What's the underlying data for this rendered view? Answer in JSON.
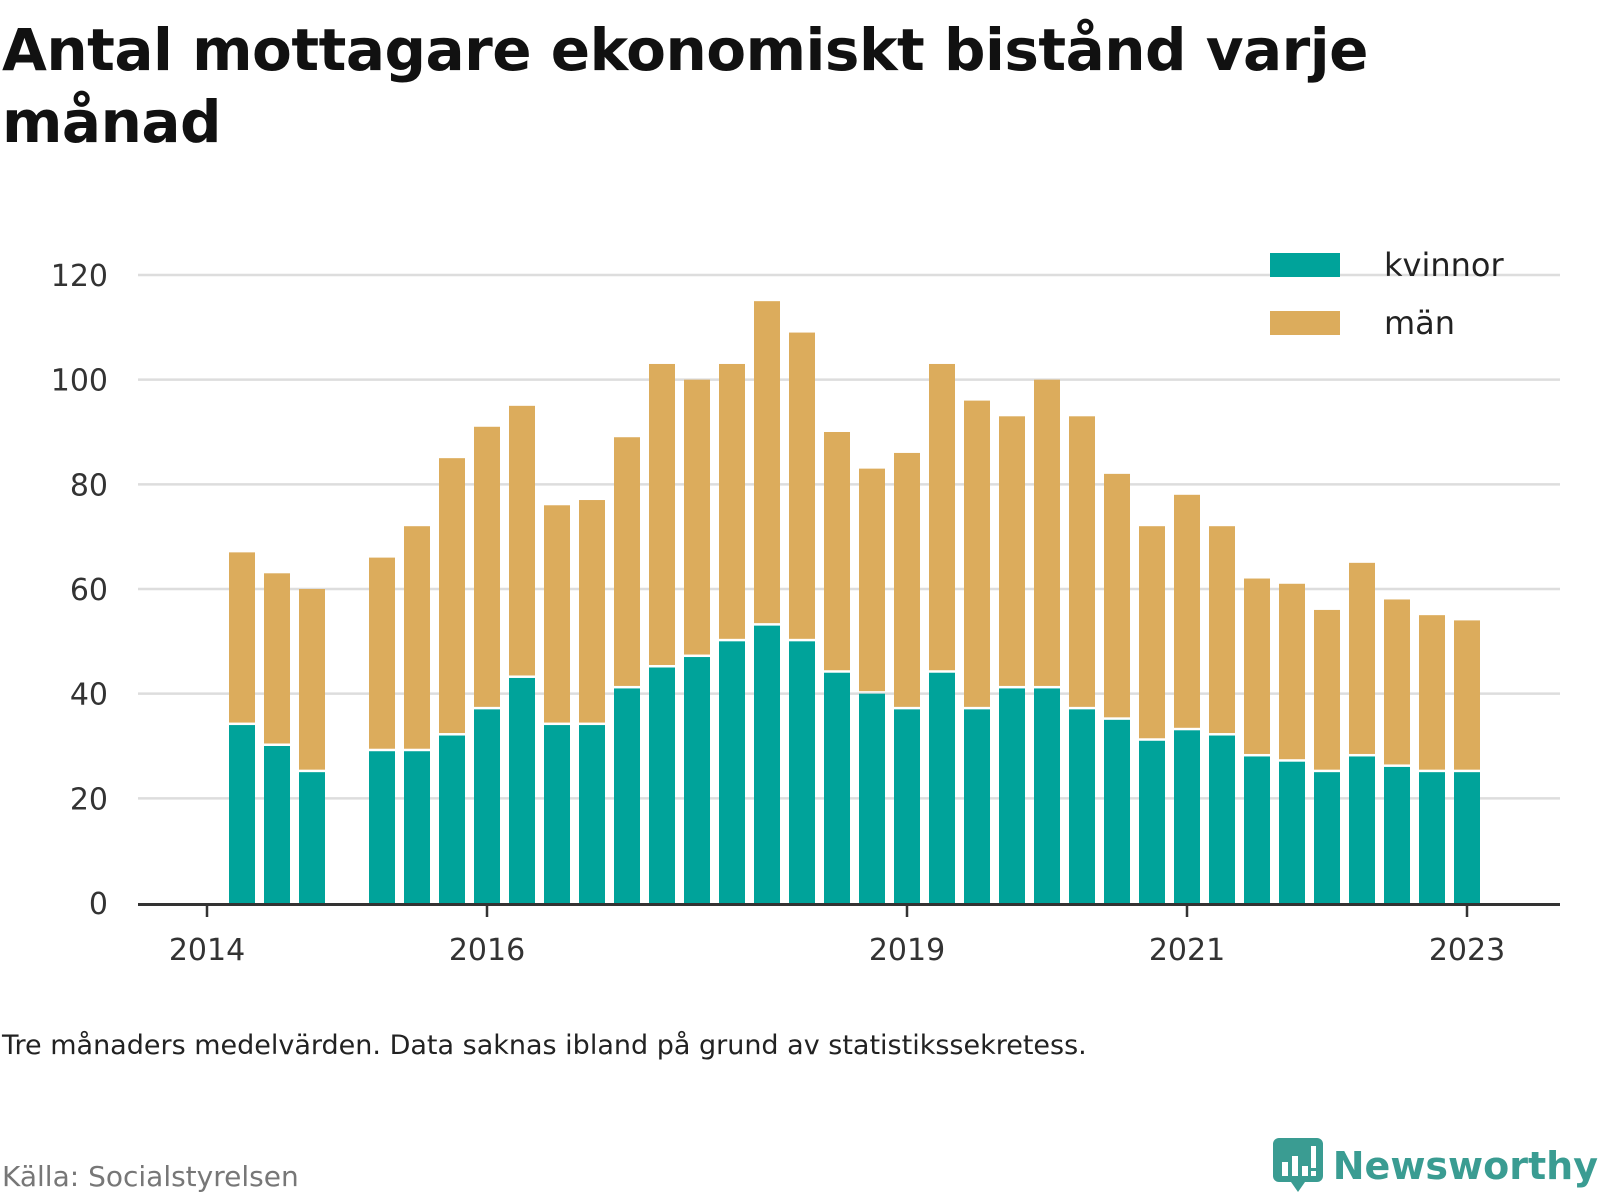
{
  "title": "Antal mottagare ekonomiskt bistånd varje månad",
  "note": "Tre månaders medelvärden. Data saknas ibland på grund av statistikssekretess.",
  "source": "Källa: Socialstyrelsen",
  "brand": "Newsworthy",
  "colors": {
    "kvinnor": "#00a39a",
    "man": "#dcac5c",
    "grid": "#dddddd",
    "axis": "#333333",
    "brand": "#3a9c92"
  },
  "chart_data": {
    "type": "bar",
    "stacked": true,
    "x_tick_labels": [
      "2014",
      "2016",
      "2019",
      "2021",
      "2023"
    ],
    "y_ticks": [
      0,
      20,
      40,
      60,
      80,
      100,
      120
    ],
    "ylim": [
      0,
      120
    ],
    "grid": true,
    "legend_position": "top-right",
    "series": [
      {
        "name": "kvinnor",
        "color": "#00a39a",
        "values": [
          null,
          34,
          30,
          25,
          null,
          29,
          29,
          32,
          37,
          43,
          34,
          34,
          41,
          45,
          47,
          50,
          53,
          50,
          44,
          40,
          37,
          44,
          37,
          41,
          41,
          37,
          35,
          31,
          33,
          32,
          28,
          27,
          25,
          28,
          26,
          25,
          25
        ]
      },
      {
        "name": "män",
        "color": "#dcac5c",
        "values": [
          null,
          33,
          33,
          35,
          null,
          37,
          43,
          53,
          54,
          52,
          42,
          43,
          48,
          58,
          53,
          53,
          62,
          59,
          46,
          43,
          49,
          59,
          59,
          52,
          59,
          56,
          47,
          41,
          45,
          40,
          34,
          34,
          31,
          37,
          32,
          30,
          29
        ]
      }
    ]
  }
}
